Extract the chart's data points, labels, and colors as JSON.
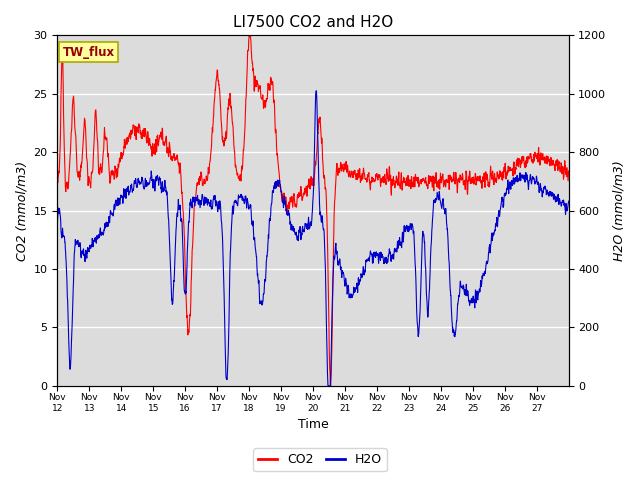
{
  "title": "LI7500 CO2 and H2O",
  "xlabel": "Time",
  "ylabel_left": "CO2 (mmol/m3)",
  "ylabel_right": "H2O (mmol/m3)",
  "ylim_left": [
    0,
    30
  ],
  "ylim_right": [
    0,
    1200
  ],
  "yticks_left": [
    0,
    5,
    10,
    15,
    20,
    25,
    30
  ],
  "yticks_right": [
    0,
    200,
    400,
    600,
    800,
    1000,
    1200
  ],
  "xtick_labels": [
    "Nov 12",
    "Nov 13",
    "Nov 14",
    "Nov 15",
    "Nov 16",
    "Nov 17",
    "Nov 18",
    "Nov 19",
    "Nov 20",
    "Nov 21",
    "Nov 22",
    "Nov 23",
    "Nov 24",
    "Nov 25",
    "Nov 26",
    "Nov 27"
  ],
  "co2_color": "#FF0000",
  "h2o_color": "#0000CC",
  "background_color": "#DCDCDC",
  "figure_bg": "#FFFFFF",
  "site_label": "TW_flux",
  "site_label_bg": "#FFFFA0",
  "site_label_border": "#AAAA00",
  "legend_co2": "CO2",
  "legend_h2o": "H2O",
  "title_fontsize": 11,
  "axis_label_fontsize": 9,
  "tick_fontsize": 8,
  "n_days": 16
}
